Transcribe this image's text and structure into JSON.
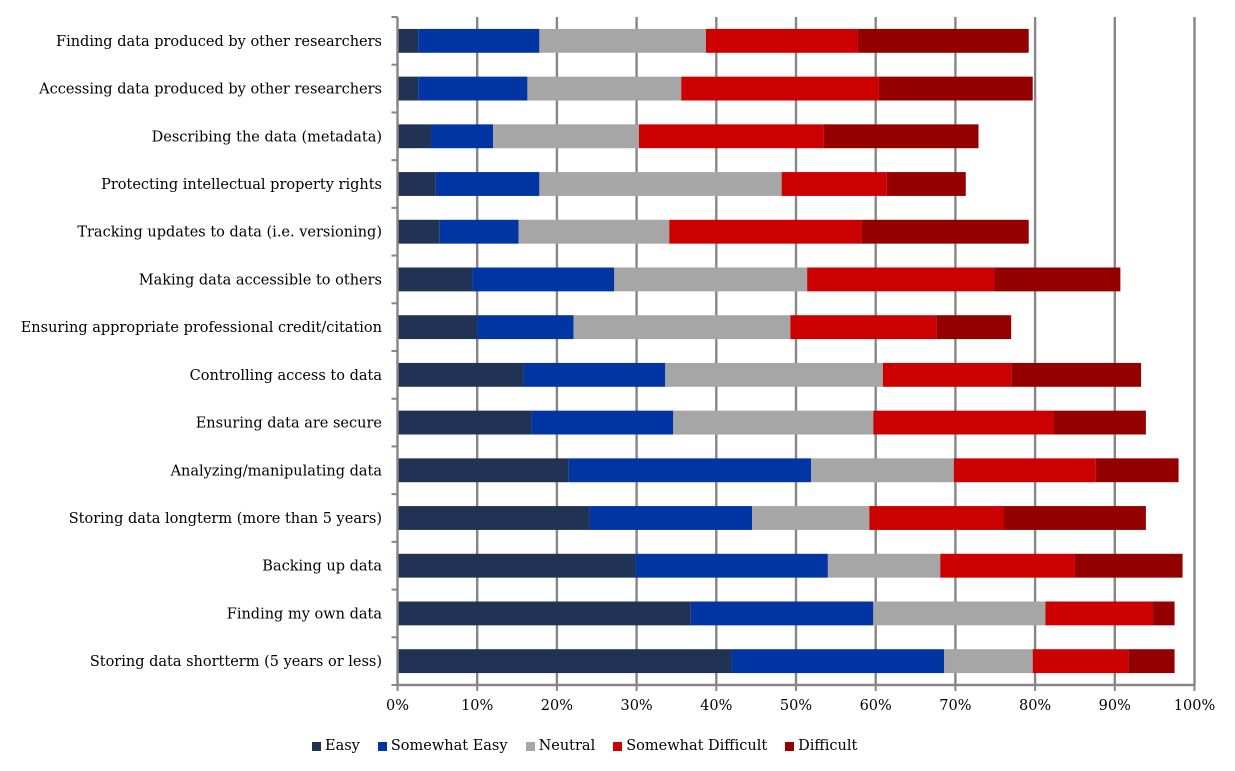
{
  "chart_data": {
    "type": "bar",
    "orientation": "horizontal",
    "stacked": true,
    "title": "",
    "xlabel": "",
    "ylabel": "",
    "xlim": [
      0,
      100
    ],
    "x_unit": "%",
    "grid": true,
    "legend_position": "bottom",
    "x_ticks": [
      "0%",
      "10%",
      "20%",
      "30%",
      "40%",
      "50%",
      "60%",
      "70%",
      "80%",
      "90%",
      "100%"
    ],
    "categories": [
      "Finding data produced by other researchers",
      "Accessing data produced by other researchers",
      "Describing the data (metadata)",
      "Protecting intellectual property rights",
      "Tracking updates to data (i.e. versioning)",
      "Making data accessible to others",
      "Ensuring appropriate professional credit/citation",
      "Controlling access to data",
      "Ensuring data are secure",
      "Analyzing/manipulating data",
      "Storing data longterm (more than 5 years)",
      "Backing up data",
      "Finding my own data",
      "Storing data shortterm (5 years or less)"
    ],
    "series": [
      {
        "name": "Easy",
        "color": "#203354",
        "values": [
          2.6,
          2.6,
          4.2,
          4.8,
          5.3,
          9.4,
          10.0,
          15.8,
          16.8,
          21.5,
          24.1,
          29.9,
          36.8,
          41.9
        ]
      },
      {
        "name": "Somewhat Easy",
        "color": "#0035A3",
        "values": [
          15.2,
          13.7,
          7.8,
          13.0,
          9.9,
          17.8,
          12.1,
          17.8,
          17.8,
          30.4,
          20.4,
          24.1,
          22.9,
          26.7
        ]
      },
      {
        "name": "Neutral",
        "color": "#A6A6A6",
        "values": [
          20.9,
          19.3,
          18.3,
          30.4,
          18.9,
          24.2,
          27.2,
          27.3,
          25.1,
          17.9,
          14.7,
          14.1,
          21.6,
          11.1
        ]
      },
      {
        "name": "Somewhat Difficult",
        "color": "#CC0000",
        "values": [
          19.0,
          24.8,
          23.2,
          13.2,
          24.1,
          23.5,
          18.3,
          16.1,
          22.6,
          17.8,
          16.9,
          16.9,
          13.5,
          12.0
        ]
      },
      {
        "name": "Difficult",
        "color": "#940000",
        "values": [
          21.5,
          19.3,
          19.4,
          9.9,
          21.0,
          15.8,
          9.4,
          16.3,
          11.6,
          10.4,
          17.8,
          13.5,
          2.7,
          5.8
        ]
      }
    ]
  }
}
